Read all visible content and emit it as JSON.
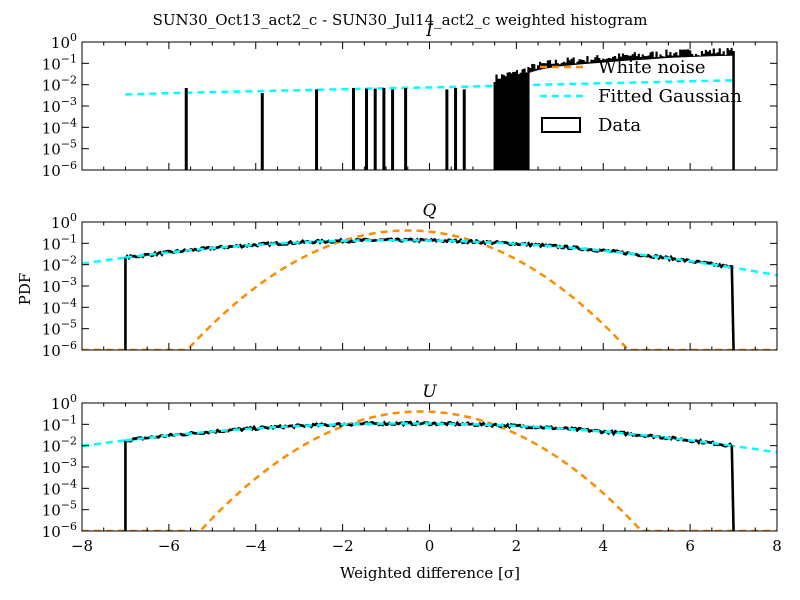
{
  "figure": {
    "suptitle": "SUN30_Oct13_act2_c - SUN30_Jul14_act2_c weighted histogram",
    "ylabel": "PDF",
    "xlabel": "Weighted difference [σ]"
  },
  "colors": {
    "white_noise": "#ff8c00",
    "fitted_gaussian": "#00ffff",
    "data": "#000000"
  },
  "chart_data": [
    {
      "type": "line",
      "title": "I",
      "log_y": true,
      "xlim": [
        -8,
        8
      ],
      "ylim": [
        1e-06,
        1
      ],
      "xticks": [
        -8,
        -6,
        -4,
        -2,
        0,
        2,
        4,
        6,
        8
      ],
      "yticks": [
        {
          "base": "10",
          "exp": "0",
          "value": 1
        },
        {
          "base": "10",
          "exp": "-1",
          "value": 0.1
        },
        {
          "base": "10",
          "exp": "-2",
          "value": 0.01
        },
        {
          "base": "10",
          "exp": "-3",
          "value": 0.001
        },
        {
          "base": "10",
          "exp": "-4",
          "value": 0.0001
        },
        {
          "base": "10",
          "exp": "-5",
          "value": 1e-05
        },
        {
          "base": "10",
          "exp": "-6",
          "value": 1e-06
        }
      ],
      "legend": {
        "placement": "top-right",
        "entries": [
          {
            "label": "White noise",
            "style": "dashed",
            "color": "#ff8c00"
          },
          {
            "label": "Fitted Gaussian",
            "style": "dashed",
            "color": "#00ffff"
          },
          {
            "label": "Data",
            "style": "box",
            "color": "#000000"
          }
        ]
      },
      "series": [
        {
          "name": "Fitted Gaussian",
          "x": [
            -7,
            -5,
            -3,
            -1,
            1,
            3,
            5,
            7
          ],
          "values": [
            0.0035,
            0.0045,
            0.0055,
            0.0068,
            0.0082,
            0.0105,
            0.013,
            0.016
          ]
        },
        {
          "name": "Data",
          "spikes": [
            {
              "x": -5.6,
              "y": 0.007
            },
            {
              "x": -3.85,
              "y": 0.004
            },
            {
              "x": -2.6,
              "y": 0.006
            },
            {
              "x": -1.75,
              "y": 0.007
            },
            {
              "x": -1.45,
              "y": 0.0065
            },
            {
              "x": -1.25,
              "y": 0.0065
            },
            {
              "x": -1.05,
              "y": 0.007
            },
            {
              "x": -0.85,
              "y": 0.006
            },
            {
              "x": -0.55,
              "y": 0.007
            },
            {
              "x": 0.4,
              "y": 0.006
            },
            {
              "x": 0.6,
              "y": 0.007
            },
            {
              "x": 0.8,
              "y": 0.006
            }
          ],
          "dense": [
            {
              "x": 1.5,
              "y": 0.02
            },
            {
              "x": 1.8,
              "y": 0.03
            },
            {
              "x": 2.1,
              "y": 0.04
            },
            {
              "x": 2.5,
              "y": 0.08
            },
            {
              "x": 3,
              "y": 0.12
            },
            {
              "x": 3.5,
              "y": 0.15
            },
            {
              "x": 4,
              "y": 0.18
            },
            {
              "x": 4.5,
              "y": 0.22
            },
            {
              "x": 5,
              "y": 0.25
            },
            {
              "x": 5.5,
              "y": 0.3
            },
            {
              "x": 6,
              "y": 0.33
            },
            {
              "x": 6.5,
              "y": 0.36
            },
            {
              "x": 7,
              "y": 0.38
            }
          ]
        }
      ]
    },
    {
      "type": "line",
      "title": "Q",
      "log_y": true,
      "xlim": [
        -8,
        8
      ],
      "ylim": [
        1e-06,
        1
      ],
      "xticks": [
        -8,
        -6,
        -4,
        -2,
        0,
        2,
        4,
        6,
        8
      ],
      "yticks": [
        {
          "base": "10",
          "exp": "0",
          "value": 1
        },
        {
          "base": "10",
          "exp": "-1",
          "value": 0.1
        },
        {
          "base": "10",
          "exp": "-2",
          "value": 0.01
        },
        {
          "base": "10",
          "exp": "-3",
          "value": 0.001
        },
        {
          "base": "10",
          "exp": "-4",
          "value": 0.0001
        },
        {
          "base": "10",
          "exp": "-5",
          "value": 1e-05
        },
        {
          "base": "10",
          "exp": "-6",
          "value": 1e-06
        }
      ],
      "series": [
        {
          "name": "White noise",
          "gaussian": {
            "amplitude": 0.4,
            "mean": -0.5,
            "sigma": 1.0
          }
        },
        {
          "name": "Fitted Gaussian",
          "gaussian": {
            "amplitude": 0.14,
            "mean": -0.8,
            "sigma": 3.2
          }
        },
        {
          "name": "Data",
          "gaussian": {
            "amplitude": 0.14,
            "mean": -0.8,
            "sigma": 3.2
          },
          "range": [
            -7,
            7
          ]
        }
      ]
    },
    {
      "type": "line",
      "title": "U",
      "log_y": true,
      "xlim": [
        -8,
        8
      ],
      "ylim": [
        1e-06,
        1
      ],
      "xticks": [
        -8,
        -6,
        -4,
        -2,
        0,
        2,
        4,
        6,
        8
      ],
      "yticks": [
        {
          "base": "10",
          "exp": "0",
          "value": 1
        },
        {
          "base": "10",
          "exp": "-1",
          "value": 0.1
        },
        {
          "base": "10",
          "exp": "-2",
          "value": 0.01
        },
        {
          "base": "10",
          "exp": "-3",
          "value": 0.001
        },
        {
          "base": "10",
          "exp": "-4",
          "value": 0.0001
        },
        {
          "base": "10",
          "exp": "-5",
          "value": 1e-05
        },
        {
          "base": "10",
          "exp": "-6",
          "value": 1e-06
        }
      ],
      "series": [
        {
          "name": "White noise",
          "gaussian": {
            "amplitude": 0.4,
            "mean": -0.2,
            "sigma": 1.0
          }
        },
        {
          "name": "Fitted Gaussian",
          "gaussian": {
            "amplitude": 0.11,
            "mean": -0.5,
            "sigma": 3.4
          }
        },
        {
          "name": "Data",
          "gaussian": {
            "amplitude": 0.11,
            "mean": -0.5,
            "sigma": 3.4
          },
          "range": [
            -7,
            7
          ]
        }
      ]
    }
  ]
}
